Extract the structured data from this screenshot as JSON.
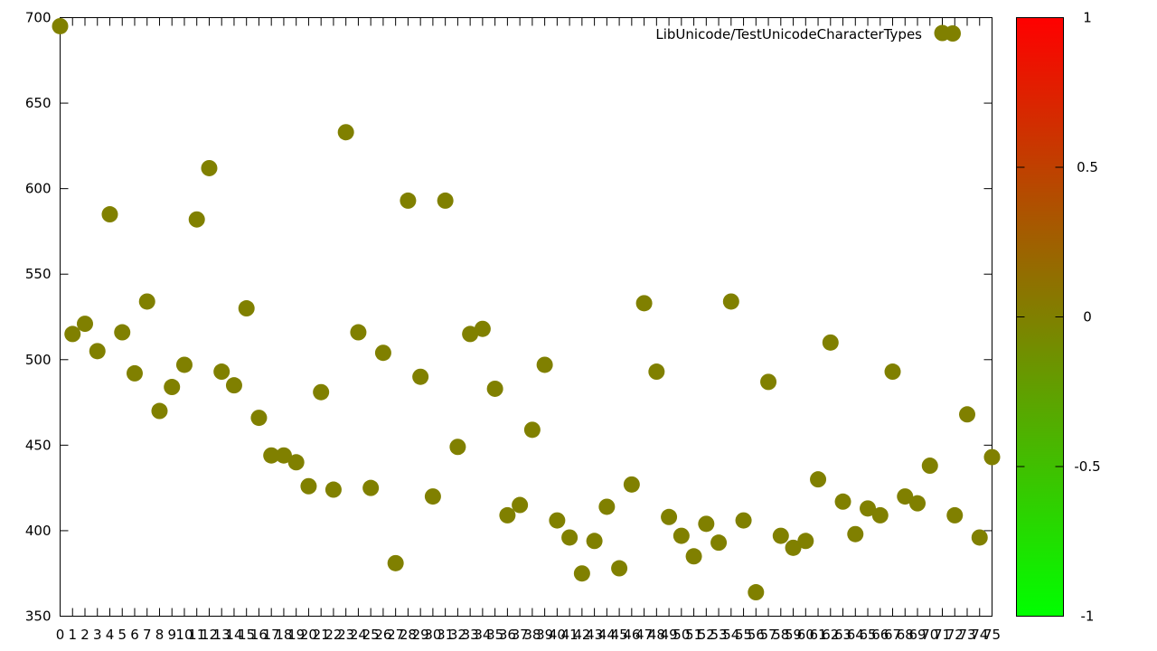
{
  "chart_data": {
    "type": "scatter",
    "title": "",
    "legend_label": "LibUnicode/TestUnicodeCharacterTypes",
    "legend_position": "top-right",
    "xlim": [
      0,
      75
    ],
    "ylim": [
      350,
      700
    ],
    "x_ticks": [
      0,
      1,
      2,
      3,
      4,
      5,
      6,
      7,
      8,
      9,
      10,
      11,
      12,
      13,
      14,
      15,
      16,
      17,
      18,
      19,
      20,
      21,
      22,
      23,
      24,
      25,
      26,
      27,
      28,
      29,
      30,
      31,
      32,
      33,
      34,
      35,
      36,
      37,
      38,
      39,
      40,
      41,
      42,
      43,
      44,
      45,
      46,
      47,
      48,
      49,
      50,
      51,
      52,
      53,
      54,
      55,
      56,
      57,
      58,
      59,
      60,
      61,
      62,
      63,
      64,
      65,
      66,
      67,
      68,
      69,
      70,
      71,
      72,
      73,
      74,
      75
    ],
    "y_ticks": [
      350,
      400,
      450,
      500,
      550,
      600,
      650,
      700
    ],
    "grid": false,
    "point_color": "#808000",
    "x": [
      0,
      1,
      2,
      3,
      4,
      5,
      6,
      7,
      8,
      9,
      10,
      11,
      12,
      13,
      14,
      15,
      16,
      17,
      18,
      19,
      20,
      21,
      22,
      23,
      24,
      25,
      26,
      27,
      28,
      29,
      30,
      31,
      32,
      33,
      34,
      35,
      36,
      37,
      38,
      39,
      40,
      41,
      42,
      43,
      44,
      45,
      46,
      47,
      48,
      49,
      50,
      51,
      52,
      53,
      54,
      55,
      56,
      57,
      58,
      59,
      60,
      61,
      62,
      63,
      64,
      65,
      66,
      67,
      68,
      69,
      70,
      71,
      72,
      73,
      74,
      75
    ],
    "y": [
      695,
      515,
      521,
      505,
      585,
      516,
      492,
      534,
      470,
      484,
      497,
      582,
      612,
      493,
      485,
      530,
      466,
      444,
      444,
      440,
      426,
      481,
      424,
      633,
      516,
      425,
      504,
      381,
      593,
      490,
      420,
      593,
      449,
      515,
      518,
      483,
      409,
      415,
      459,
      497,
      406,
      396,
      375,
      394,
      414,
      378,
      427,
      533,
      493,
      408,
      397,
      385,
      404,
      393,
      534,
      406,
      364,
      487,
      397,
      390,
      394,
      430,
      510,
      417,
      398,
      413,
      409,
      493,
      420,
      416,
      438,
      691,
      409,
      468,
      396,
      443
    ]
  },
  "colorbar": {
    "min": -1,
    "max": 1,
    "ticks": [
      1,
      0.5,
      0,
      -0.5,
      -1
    ],
    "tick_labels": [
      "1",
      "0.5",
      "0",
      "-0.5",
      "-1"
    ],
    "colors": [
      "#ff0000",
      "#808000",
      "#00ff00"
    ]
  }
}
